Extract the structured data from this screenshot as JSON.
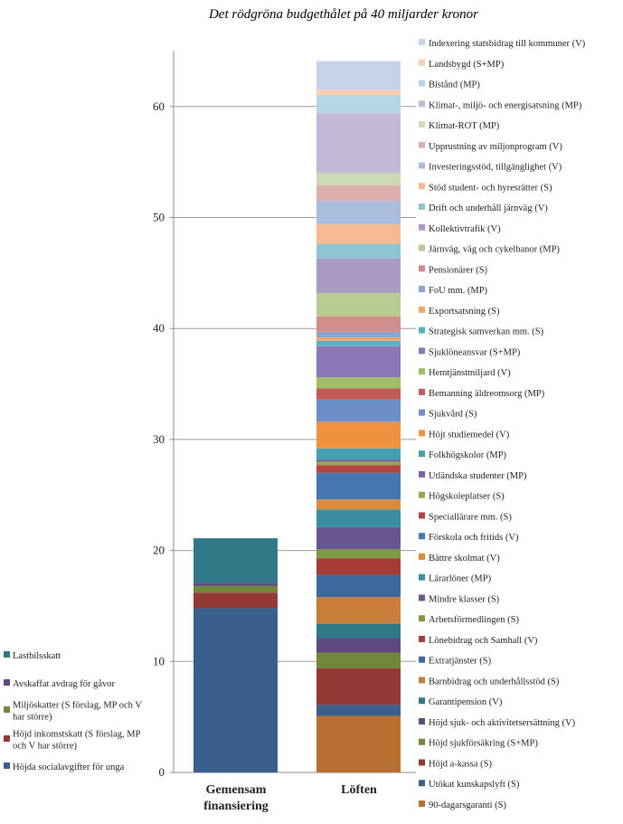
{
  "chart_data": {
    "type": "bar",
    "stacked": true,
    "title": "Det rödgröna budgethålet på 40 miljarder kronor",
    "categories": [
      "Gemensam finansiering",
      "Löften"
    ],
    "ylim": [
      0,
      65
    ],
    "yticks": [
      0,
      10,
      20,
      30,
      40,
      50,
      60
    ],
    "grid": true,
    "left_legend": [
      {
        "name": "Höjda socialavgifter för unga",
        "color": "#3a5f8c",
        "lines": [
          "Höjda socialavgifter för unga"
        ]
      },
      {
        "name": "Höjd inkomstskatt (S förslag, MP och V har större)",
        "color": "#943a36",
        "lines": [
          "Höjd inkomstskatt (S förslag, MP",
          "och V har större)"
        ]
      },
      {
        "name": "Miljöskatter (S förslag, MP och V har större)",
        "color": "#71883a",
        "lines": [
          "Miljöskatter (S förslag, MP och V",
          "har större)"
        ]
      },
      {
        "name": "Avskaffat avdrag för gåvor",
        "color": "#5e4a7e",
        "lines": [
          "Avskaffat avdrag för gåvor"
        ]
      },
      {
        "name": "Lastbilsskatt",
        "color": "#2f7886",
        "lines": [
          "Lastbilsskatt"
        ]
      }
    ],
    "financing": [
      {
        "name": "Höjda socialavgifter för unga",
        "value": 14.8,
        "color": "#3a5f8c"
      },
      {
        "name": "Höjd inkomstskatt (S förslag, MP och V har större)",
        "value": 1.4,
        "color": "#943a36"
      },
      {
        "name": "Miljöskatter (S förslag, MP och V har större)",
        "value": 0.6,
        "color": "#71883a"
      },
      {
        "name": "Avskaffat avdrag för gåvor",
        "value": 0.3,
        "color": "#5e4a7e"
      },
      {
        "name": "Lastbilsskatt",
        "value": 4.0,
        "color": "#2f7886"
      }
    ],
    "promises": [
      {
        "name": "90-dagarsgaranti (S)",
        "value": 5.1,
        "color": "#b86f31"
      },
      {
        "name": "Utökat kunskapslyft (S)",
        "value": 1.0,
        "color": "#3a5f8c"
      },
      {
        "name": "Höjd a-kassa (S)",
        "value": 3.3,
        "color": "#943a36"
      },
      {
        "name": "Höjd sjukförsäkring (S+MP)",
        "value": 1.4,
        "color": "#71883a"
      },
      {
        "name": "Höjd sjuk- och aktivitetsersättning (V)",
        "value": 1.3,
        "color": "#5e4a7e"
      },
      {
        "name": "Garantipension (V)",
        "value": 1.3,
        "color": "#2f7886"
      },
      {
        "name": "Barnbidrag och underhållsstöd (S)",
        "value": 2.4,
        "color": "#c87d3a"
      },
      {
        "name": "Extratjänster (S)",
        "value": 2.0,
        "color": "#3d6a9c"
      },
      {
        "name": "Lönebidrag och Samhall (V)",
        "value": 1.5,
        "color": "#a63c38"
      },
      {
        "name": "Arbetsförmedlingen (S)",
        "value": 0.8,
        "color": "#7f9a44"
      },
      {
        "name": "Mindre klasser (S)",
        "value": 2.0,
        "color": "#6a5590"
      },
      {
        "name": "Lärarlöner (MP)",
        "value": 1.6,
        "color": "#3a8ea0"
      },
      {
        "name": "Bättre skolmat (V)",
        "value": 0.9,
        "color": "#d98a3c"
      },
      {
        "name": "Förskola och fritids (V)",
        "value": 2.4,
        "color": "#4677b0"
      },
      {
        "name": "Speciallärare mm. (S)",
        "value": 0.7,
        "color": "#b4443f"
      },
      {
        "name": "Högskoleplatser (S)",
        "value": 0.3,
        "color": "#8fad4f"
      },
      {
        "name": "Utländska studenter (MP)",
        "value": 0.2,
        "color": "#7a63a3"
      },
      {
        "name": "Folkhögskolor (MP)",
        "value": 1.0,
        "color": "#44a1b5"
      },
      {
        "name": "Höjt studiemedel (V)",
        "value": 2.4,
        "color": "#ee9240"
      },
      {
        "name": "Sjukvård (S)",
        "value": 2.0,
        "color": "#6b8fc6"
      },
      {
        "name": "Bemanning äldreomsorg (MP)",
        "value": 1.0,
        "color": "#c25a55"
      },
      {
        "name": "Hemtjänstmiljard (V)",
        "value": 1.0,
        "color": "#9fbd66"
      },
      {
        "name": "Sjuklöneansvar (S+MP)",
        "value": 2.8,
        "color": "#8d77b4"
      },
      {
        "name": "Strategisk samverkan mm. (S)",
        "value": 0.5,
        "color": "#5cb1c4"
      },
      {
        "name": "Exportsatsning (S)",
        "value": 0.3,
        "color": "#f2a66a"
      },
      {
        "name": "FoU mm. (MP)",
        "value": 0.5,
        "color": "#8aa5cf"
      },
      {
        "name": "Pensionärer (S)",
        "value": 1.4,
        "color": "#d08e8b"
      },
      {
        "name": "Järnväg, väg och cykelbanor (MP)",
        "value": 2.1,
        "color": "#b7cb92"
      },
      {
        "name": "Kollektivtrafik (V)",
        "value": 3.1,
        "color": "#ab9ac4"
      },
      {
        "name": "Drift och underhåll järnväg (V)",
        "value": 1.3,
        "color": "#8fc4d3"
      },
      {
        "name": "Stöd student- och hyresrätter (S)",
        "value": 1.8,
        "color": "#f7bb94"
      },
      {
        "name": "Investeringsstöd, tillgänglighet (V)",
        "value": 2.1,
        "color": "#a9bedd"
      },
      {
        "name": "Upprustning av miljonprogram (V)",
        "value": 1.4,
        "color": "#ddb0ae"
      },
      {
        "name": "Klimat-ROT (MP)",
        "value": 1.1,
        "color": "#ccdbb5"
      },
      {
        "name": "Klimat-, miljö- och energisatsning (MP)",
        "value": 5.4,
        "color": "#c2b8d7"
      },
      {
        "name": "Bistånd (MP)",
        "value": 1.6,
        "color": "#b4d8e3"
      },
      {
        "name": "Landsbygd (S+MP)",
        "value": 0.5,
        "color": "#f9cfb3"
      },
      {
        "name": "Indexering statsbidrag till kommuner (V)",
        "value": 2.6,
        "color": "#c6d3e8"
      }
    ]
  }
}
